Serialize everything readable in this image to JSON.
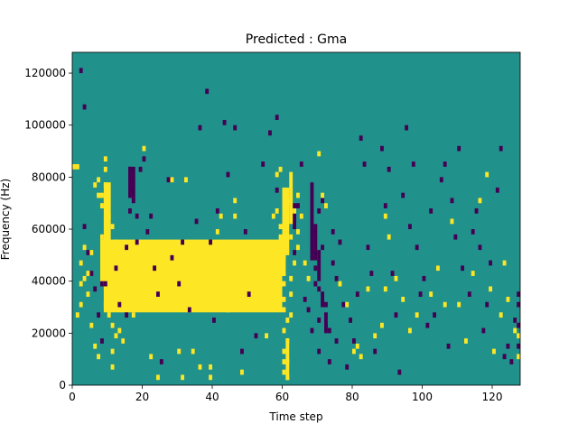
{
  "chart_data": {
    "type": "heatmap",
    "title": "Predicted : Gma",
    "xlabel": "Time step",
    "ylabel": "Frequency (Hz)",
    "xlim": [
      0,
      128
    ],
    "ylim": [
      0,
      128000
    ],
    "x_ticks": [
      0,
      20,
      40,
      60,
      80,
      100,
      120
    ],
    "y_ticks": [
      0,
      20000,
      40000,
      60000,
      80000,
      100000,
      120000
    ],
    "x_tick_labels": [
      "0",
      "20",
      "40",
      "60",
      "80",
      "100",
      "120"
    ],
    "y_tick_labels": [
      "0",
      "20000",
      "40000",
      "60000",
      "80000",
      "100000",
      "120000"
    ],
    "grid": false,
    "colormap": "viridis",
    "colors": {
      "low": "#440154",
      "mid": "#21918c",
      "high": "#fde725"
    },
    "background_value": "mid",
    "cells_yellow": [
      [
        0,
        83000
      ],
      [
        1,
        83000
      ],
      [
        1,
        26000
      ],
      [
        2,
        30000
      ],
      [
        2,
        38000
      ],
      [
        2,
        46000
      ],
      [
        3,
        40000
      ],
      [
        3,
        52000
      ],
      [
        4,
        34000
      ],
      [
        4,
        42000
      ],
      [
        5,
        22000
      ],
      [
        5,
        50000
      ],
      [
        6,
        14000
      ],
      [
        6,
        76000
      ],
      [
        7,
        10000
      ],
      [
        7,
        78000
      ],
      [
        7,
        72000
      ],
      [
        8,
        56000
      ],
      [
        8,
        68000
      ],
      [
        8,
        72000
      ],
      [
        8,
        42000
      ],
      [
        9,
        70000
      ],
      [
        9,
        76000
      ],
      [
        9,
        82000
      ],
      [
        9,
        86000
      ],
      [
        9,
        30000
      ],
      [
        10,
        26000
      ],
      [
        10,
        46000
      ],
      [
        10,
        64000
      ],
      [
        11,
        60000
      ],
      [
        11,
        48000
      ],
      [
        11,
        22000
      ],
      [
        11,
        12000
      ],
      [
        11,
        6000
      ],
      [
        12,
        54000
      ],
      [
        12,
        32000
      ],
      [
        12,
        18000
      ],
      [
        13,
        20000
      ],
      [
        14,
        16000
      ],
      [
        15,
        46000
      ],
      [
        17,
        26000
      ],
      [
        19,
        36000
      ],
      [
        20,
        40000
      ],
      [
        20,
        90000
      ],
      [
        21,
        52000
      ],
      [
        22,
        10000
      ],
      [
        24,
        2000
      ],
      [
        26,
        46000
      ],
      [
        28,
        78000
      ],
      [
        30,
        12000
      ],
      [
        31,
        2000
      ],
      [
        32,
        78000
      ],
      [
        34,
        12000
      ],
      [
        36,
        6000
      ],
      [
        38,
        36000
      ],
      [
        39,
        2000
      ],
      [
        39,
        6000
      ],
      [
        41,
        58000
      ],
      [
        42,
        64000
      ],
      [
        44,
        28000
      ],
      [
        46,
        70000
      ],
      [
        46,
        64000
      ],
      [
        46,
        36000
      ],
      [
        48,
        4000
      ],
      [
        55,
        18000
      ],
      [
        57,
        64000
      ],
      [
        58,
        66000
      ],
      [
        58,
        80000
      ],
      [
        59,
        82000
      ],
      [
        59,
        60000
      ],
      [
        59,
        52000
      ],
      [
        60,
        48000
      ],
      [
        60,
        42000
      ],
      [
        60,
        38000
      ],
      [
        60,
        32000
      ],
      [
        60,
        28000
      ],
      [
        60,
        20000
      ],
      [
        60,
        12000
      ],
      [
        60,
        8000
      ],
      [
        60,
        4000
      ],
      [
        61,
        24000
      ],
      [
        61,
        16000
      ],
      [
        61,
        8000
      ],
      [
        61,
        2000
      ],
      [
        61,
        70000
      ],
      [
        62,
        62000
      ],
      [
        62,
        56000
      ],
      [
        62,
        40000
      ],
      [
        62,
        34000
      ],
      [
        62,
        26000
      ],
      [
        63,
        46000
      ],
      [
        63,
        66000
      ],
      [
        64,
        52000
      ],
      [
        64,
        58000
      ],
      [
        64,
        72000
      ],
      [
        65,
        64000
      ],
      [
        66,
        46000
      ],
      [
        67,
        40000
      ],
      [
        70,
        88000
      ],
      [
        71,
        72000
      ],
      [
        72,
        68000
      ],
      [
        76,
        38000
      ],
      [
        78,
        30000
      ],
      [
        80,
        12000
      ],
      [
        81,
        14000
      ],
      [
        82,
        10000
      ],
      [
        84,
        36000
      ],
      [
        86,
        18000
      ],
      [
        88,
        22000
      ],
      [
        89,
        36000
      ],
      [
        89,
        64000
      ],
      [
        90,
        56000
      ],
      [
        92,
        40000
      ],
      [
        94,
        32000
      ],
      [
        96,
        20000
      ],
      [
        98,
        26000
      ],
      [
        102,
        34000
      ],
      [
        104,
        44000
      ],
      [
        106,
        30000
      ],
      [
        108,
        62000
      ],
      [
        110,
        30000
      ],
      [
        112,
        16000
      ],
      [
        114,
        42000
      ],
      [
        116,
        70000
      ],
      [
        118,
        80000
      ],
      [
        119,
        36000
      ],
      [
        120,
        12000
      ],
      [
        122,
        26000
      ],
      [
        123,
        46000
      ],
      [
        124,
        32000
      ],
      [
        126,
        20000
      ],
      [
        128,
        18000
      ],
      [
        128,
        10000
      ]
    ],
    "cells_purple": [
      [
        2,
        120000
      ],
      [
        3,
        106000
      ],
      [
        3,
        60000
      ],
      [
        4,
        50000
      ],
      [
        5,
        42000
      ],
      [
        6,
        36000
      ],
      [
        7,
        26000
      ],
      [
        8,
        38000
      ],
      [
        8,
        16000
      ],
      [
        9,
        38000
      ],
      [
        12,
        44000
      ],
      [
        13,
        30000
      ],
      [
        14,
        16000
      ],
      [
        15,
        26000
      ],
      [
        15,
        52000
      ],
      [
        16,
        66000
      ],
      [
        16,
        74000
      ],
      [
        16,
        82000
      ],
      [
        17,
        70000
      ],
      [
        18,
        54000
      ],
      [
        18,
        64000
      ],
      [
        19,
        82000
      ],
      [
        20,
        86000
      ],
      [
        21,
        58000
      ],
      [
        22,
        64000
      ],
      [
        23,
        44000
      ],
      [
        24,
        34000
      ],
      [
        25,
        8000
      ],
      [
        27,
        78000
      ],
      [
        28,
        48000
      ],
      [
        30,
        38000
      ],
      [
        31,
        54000
      ],
      [
        33,
        28000
      ],
      [
        35,
        62000
      ],
      [
        36,
        98000
      ],
      [
        38,
        112000
      ],
      [
        39,
        54000
      ],
      [
        40,
        24000
      ],
      [
        41,
        66000
      ],
      [
        43,
        100000
      ],
      [
        44,
        80000
      ],
      [
        46,
        98000
      ],
      [
        48,
        12000
      ],
      [
        49,
        58000
      ],
      [
        50,
        34000
      ],
      [
        52,
        18000
      ],
      [
        54,
        84000
      ],
      [
        56,
        96000
      ],
      [
        58,
        102000
      ],
      [
        58,
        74000
      ],
      [
        63,
        50000
      ],
      [
        64,
        68000
      ],
      [
        65,
        84000
      ],
      [
        66,
        32000
      ],
      [
        67,
        28000
      ],
      [
        68,
        20000
      ],
      [
        68,
        58000
      ],
      [
        68,
        48000
      ],
      [
        69,
        44000
      ],
      [
        69,
        38000
      ],
      [
        70,
        36000
      ],
      [
        70,
        24000
      ],
      [
        70,
        12000
      ],
      [
        70,
        66000
      ],
      [
        71,
        70000
      ],
      [
        71,
        52000
      ],
      [
        72,
        30000
      ],
      [
        72,
        22000
      ],
      [
        73,
        20000
      ],
      [
        73,
        8000
      ],
      [
        74,
        46000
      ],
      [
        74,
        58000
      ],
      [
        75,
        40000
      ],
      [
        75,
        16000
      ],
      [
        76,
        54000
      ],
      [
        77,
        30000
      ],
      [
        78,
        6000
      ],
      [
        79,
        24000
      ],
      [
        80,
        16000
      ],
      [
        81,
        34000
      ],
      [
        82,
        94000
      ],
      [
        83,
        84000
      ],
      [
        84,
        52000
      ],
      [
        85,
        42000
      ],
      [
        86,
        12000
      ],
      [
        88,
        90000
      ],
      [
        89,
        68000
      ],
      [
        90,
        82000
      ],
      [
        91,
        42000
      ],
      [
        92,
        26000
      ],
      [
        93,
        4000
      ],
      [
        94,
        72000
      ],
      [
        95,
        98000
      ],
      [
        96,
        60000
      ],
      [
        97,
        84000
      ],
      [
        98,
        52000
      ],
      [
        99,
        34000
      ],
      [
        100,
        40000
      ],
      [
        101,
        22000
      ],
      [
        102,
        66000
      ],
      [
        103,
        26000
      ],
      [
        104,
        44000
      ],
      [
        105,
        78000
      ],
      [
        106,
        84000
      ],
      [
        107,
        14000
      ],
      [
        108,
        70000
      ],
      [
        109,
        56000
      ],
      [
        110,
        90000
      ],
      [
        111,
        44000
      ],
      [
        113,
        34000
      ],
      [
        114,
        58000
      ],
      [
        115,
        66000
      ],
      [
        116,
        52000
      ],
      [
        117,
        20000
      ],
      [
        118,
        30000
      ],
      [
        119,
        46000
      ],
      [
        121,
        74000
      ],
      [
        122,
        90000
      ],
      [
        123,
        10000
      ],
      [
        124,
        14000
      ],
      [
        125,
        8000
      ],
      [
        126,
        24000
      ],
      [
        127,
        30000
      ],
      [
        127,
        14000
      ],
      [
        128,
        34000
      ],
      [
        128,
        22000
      ]
    ],
    "blocks_yellow": [
      [
        8,
        60,
        56000,
        38000
      ],
      [
        9,
        60,
        52000,
        28000
      ],
      [
        59,
        61,
        58000,
        42000
      ],
      [
        60,
        62,
        76000,
        50000
      ],
      [
        61,
        62,
        18000,
        2000
      ],
      [
        62,
        63,
        82000,
        64000
      ],
      [
        9,
        11,
        78000,
        50000
      ],
      [
        10,
        11,
        40000,
        28000
      ]
    ],
    "blocks_purple": [
      [
        16,
        17,
        84000,
        72000
      ],
      [
        17,
        18,
        84000,
        72000
      ],
      [
        63,
        64,
        70000,
        60000
      ],
      [
        68,
        69,
        78000,
        50000
      ],
      [
        69,
        70,
        62000,
        48000
      ],
      [
        70,
        71,
        52000,
        40000
      ],
      [
        71,
        72,
        36000,
        30000
      ],
      [
        72,
        73,
        28000,
        20000
      ]
    ]
  }
}
